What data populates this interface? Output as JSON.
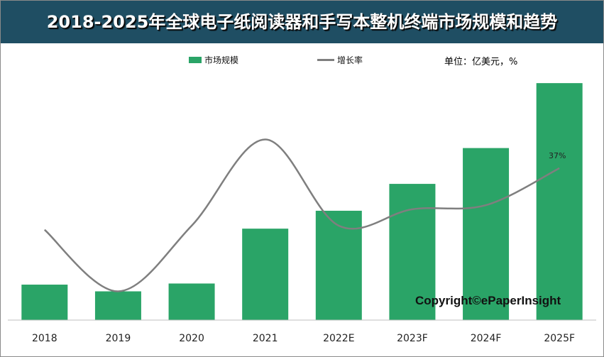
{
  "header": {
    "title": "2018-2025年全球电子纸阅读器和手写本整机终端市场规模和趋势"
  },
  "unit_label": "单位：亿美元，%",
  "copyright": "Copyright©ePaperInsight",
  "colors": {
    "header_bg": "#1f4e63",
    "bar": "#2aa467",
    "line": "#7f7f7f"
  },
  "chart_data": {
    "type": "bar",
    "title": "2018-2025年全球电子纸阅读器和手写本整机终端市场规模和趋势",
    "categories": [
      "2018",
      "2019",
      "2020",
      "2021",
      "2022E",
      "2023F",
      "2024F",
      "2025F"
    ],
    "series": [
      {
        "name": "市场规模",
        "kind": "bar",
        "values": [
          16,
          13,
          16.5,
          41,
          49,
          61,
          77,
          106
        ]
      },
      {
        "name": "增长率",
        "kind": "line",
        "values": [
          22,
          7,
          23,
          44,
          23,
          27,
          28,
          37
        ]
      }
    ],
    "annotations": [
      {
        "series": "增长率",
        "category": "2025F",
        "text": "37%"
      }
    ],
    "ylim_bar": [
      0,
      110
    ],
    "ylim_line": [
      0,
      60
    ],
    "legend": [
      "市场规模",
      "增长率"
    ],
    "legend_position": "top-center"
  }
}
